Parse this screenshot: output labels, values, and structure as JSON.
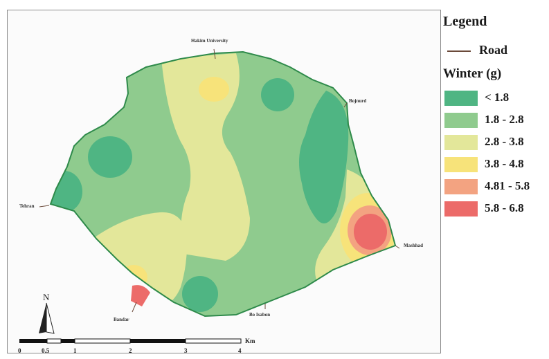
{
  "map": {
    "places": {
      "north": "Hakim University",
      "northeast": "Bojnurd",
      "west": "Tehran",
      "east": "Mashhad",
      "southwest": "Bandar",
      "south": "Bo Isabon"
    }
  },
  "legend": {
    "title": "Legend",
    "road_label": "Road",
    "season_label": "Winter (g)",
    "classes": [
      {
        "label": "< 1.8",
        "color": "#4fb583"
      },
      {
        "label": "1.8 - 2.8",
        "color": "#8fcb8e"
      },
      {
        "label": "2.8 - 3.8",
        "color": "#e3e79a"
      },
      {
        "label": "3.8 - 4.8",
        "color": "#f7e37a"
      },
      {
        "label": "4.81 - 5.8",
        "color": "#f3a381"
      },
      {
        "label": "5.8 - 6.8",
        "color": "#ec6b69"
      }
    ]
  },
  "north_arrow": {
    "letter": "N"
  },
  "scale": {
    "ticks": [
      "0",
      "0.5",
      "1",
      "2",
      "3",
      "4"
    ],
    "unit": "Km"
  }
}
